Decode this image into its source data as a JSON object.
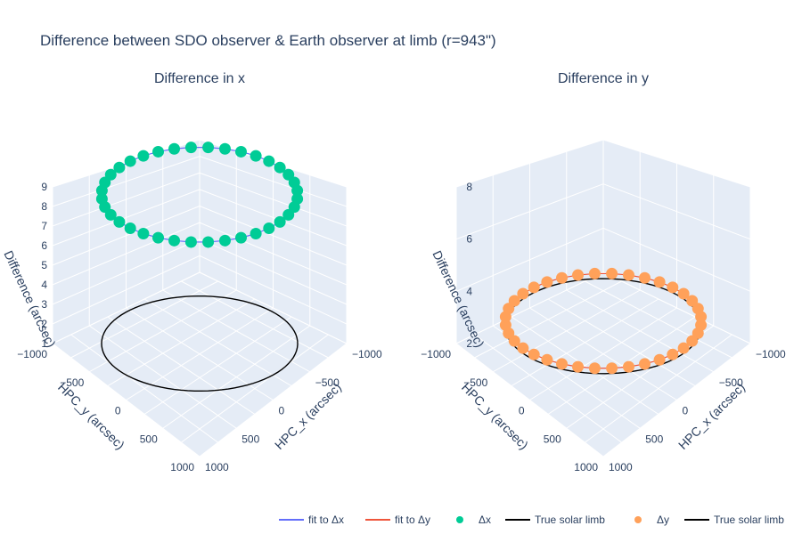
{
  "figure": {
    "title": "Difference between SDO observer & Earth observer at limb (r=943\")",
    "subplot_titles": [
      "Difference in x",
      "Difference in y"
    ]
  },
  "legend": {
    "placement": "bottom-right",
    "items": [
      {
        "label": "fit to Δx",
        "kind": "line",
        "color": "#636efa"
      },
      {
        "label": "fit to Δy",
        "kind": "line",
        "color": "#ef553b"
      },
      {
        "label": "Δx",
        "kind": "marker",
        "color": "#00cc96"
      },
      {
        "label": "True solar limb",
        "kind": "line",
        "color": "#000000"
      },
      {
        "label": "Δy",
        "kind": "marker",
        "color": "#ffa15a"
      },
      {
        "label": "True solar limb",
        "kind": "line",
        "color": "#000000"
      }
    ]
  },
  "chart_data": [
    {
      "type": "scatter3d",
      "title": "Difference in x",
      "xlabel": "HPC_x (arcsec)",
      "ylabel": "HPC_y (arcsec)",
      "zlabel": "Difference (arcsec)",
      "x_ticks": [
        "−1000",
        "−500",
        "0",
        "500",
        "1000"
      ],
      "y_ticks": [
        "−1000",
        "−500",
        "0",
        "500",
        "1000"
      ],
      "z_ticks": [
        "1",
        "2",
        "3",
        "4",
        "5",
        "6",
        "7",
        "8",
        "9"
      ],
      "xlim": [
        -1000,
        1000
      ],
      "ylim": [
        -1000,
        1000
      ],
      "zlim": [
        1,
        9
      ],
      "limb_radius": 943,
      "limb_z": 1,
      "marker_color": "#00cc96",
      "fit_color": "#636efa",
      "limb_color": "#000000",
      "points_angle_deg": [
        0,
        10,
        20,
        30,
        40,
        50,
        60,
        70,
        80,
        90,
        100,
        110,
        120,
        130,
        140,
        150,
        160,
        170,
        180,
        190,
        200,
        210,
        220,
        230,
        240,
        250,
        260,
        270,
        280,
        290,
        300,
        310,
        320,
        330,
        340,
        350
      ],
      "dx": [
        8.6,
        8.6,
        8.6,
        8.6,
        8.6,
        8.6,
        8.6,
        8.6,
        8.6,
        8.6,
        8.6,
        8.6,
        8.6,
        8.6,
        8.6,
        8.6,
        8.6,
        8.6,
        8.6,
        8.6,
        8.6,
        8.6,
        8.6,
        8.6,
        8.6,
        8.6,
        8.6,
        8.6,
        8.6,
        8.6,
        8.6,
        8.6,
        8.6,
        8.6,
        8.6,
        8.6
      ]
    },
    {
      "type": "scatter3d",
      "title": "Difference in y",
      "xlabel": "HPC_x (arcsec)",
      "ylabel": "HPC_y (arcsec)",
      "zlabel": "Difference (arcsec)",
      "x_ticks": [
        "−1000",
        "−500",
        "0",
        "500",
        "1000"
      ],
      "y_ticks": [
        "−1000",
        "−500",
        "0",
        "500",
        "1000"
      ],
      "z_ticks": [
        "2",
        "4",
        "6",
        "8"
      ],
      "xlim": [
        -1000,
        1000
      ],
      "ylim": [
        -1000,
        1000
      ],
      "zlim": [
        0,
        9
      ],
      "limb_radius": 943,
      "limb_z": 1,
      "marker_color": "#ffa15a",
      "fit_color": "#ef553b",
      "limb_color": "#000000",
      "points_angle_deg": [
        0,
        10,
        20,
        30,
        40,
        50,
        60,
        70,
        80,
        90,
        100,
        110,
        120,
        130,
        140,
        150,
        160,
        170,
        180,
        190,
        200,
        210,
        220,
        230,
        240,
        250,
        260,
        270,
        280,
        290,
        300,
        310,
        320,
        330,
        340,
        350
      ],
      "dy": [
        1.3,
        1.3,
        1.3,
        1.3,
        1.3,
        1.3,
        1.3,
        1.3,
        1.3,
        1.3,
        1.3,
        1.3,
        1.3,
        1.3,
        1.3,
        1.3,
        1.3,
        1.3,
        1.3,
        1.3,
        1.3,
        1.3,
        1.3,
        1.3,
        1.3,
        1.3,
        1.3,
        1.3,
        1.3,
        1.3,
        1.3,
        1.3,
        1.3,
        1.3,
        1.3,
        1.3
      ]
    }
  ]
}
